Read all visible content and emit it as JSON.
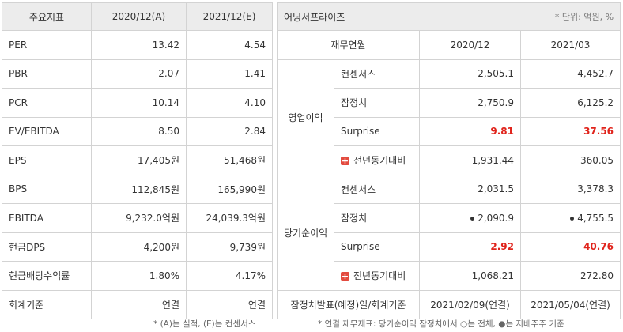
{
  "left": {
    "headers": [
      "주요지표",
      "2020/12(A)",
      "2021/12(E)"
    ],
    "rows": [
      {
        "label": "PER",
        "v1": "13.42",
        "v2": "4.54"
      },
      {
        "label": "PBR",
        "v1": "2.07",
        "v2": "1.41"
      },
      {
        "label": "PCR",
        "v1": "10.14",
        "v2": "4.10"
      },
      {
        "label": "EV/EBITDA",
        "v1": "8.50",
        "v2": "2.84"
      },
      {
        "label": "EPS",
        "v1": "17,405원",
        "v2": "51,468원"
      },
      {
        "label": "BPS",
        "v1": "112,845원",
        "v2": "165,990원"
      },
      {
        "label": "EBITDA",
        "v1": "9,232.0억원",
        "v2": "24,039.3억원"
      },
      {
        "label": "현금DPS",
        "v1": "4,200원",
        "v2": "9,739원"
      },
      {
        "label": "현금배당수익률",
        "v1": "1.80%",
        "v2": "4.17%"
      },
      {
        "label": "회계기준",
        "v1": "연결",
        "v2": "연결"
      }
    ],
    "footnote": "* (A)는 실적, (E)는 컨센서스"
  },
  "right": {
    "title": "어닝서프라이즈",
    "unit": "* 단위: 억원, %",
    "col_header": "재무연월",
    "periods": [
      "2020/12",
      "2021/03"
    ],
    "groups": [
      {
        "name": "영업이익",
        "rows": [
          {
            "label": "컨센서스",
            "v1": "2,505.1",
            "v2": "4,452.7"
          },
          {
            "label": "잠정치",
            "v1": "2,750.9",
            "v2": "6,125.2"
          },
          {
            "label": "Surprise",
            "v1": "9.81",
            "v2": "37.56"
          },
          {
            "label": "전년동기대비",
            "v1": "1,931.44",
            "v2": "360.05"
          }
        ]
      },
      {
        "name": "당기순이익",
        "rows": [
          {
            "label": "컨센서스",
            "v1": "2,031.5",
            "v2": "3,378.3"
          },
          {
            "label": "잠정치",
            "v1": "2,090.9",
            "v2": "4,755.5"
          },
          {
            "label": "Surprise",
            "v1": "2.92",
            "v2": "40.76"
          },
          {
            "label": "전년동기대비",
            "v1": "1,068.21",
            "v2": "272.80"
          }
        ]
      }
    ],
    "announce_label": "잠정치발표(예정)일/회계기준",
    "announce_v1": "2021/02/09(연결)",
    "announce_v2": "2021/05/04(연결)",
    "footnote": "* 연결 재무제표: 당기순이익 잠정치에서 ○는 전체, ●는 지배주주 기준"
  },
  "icons": {
    "expand": "plus-icon",
    "marker": "filled-dot"
  },
  "colors": {
    "surprise_positive": "#e0231b",
    "header_bg": "#ececec"
  }
}
